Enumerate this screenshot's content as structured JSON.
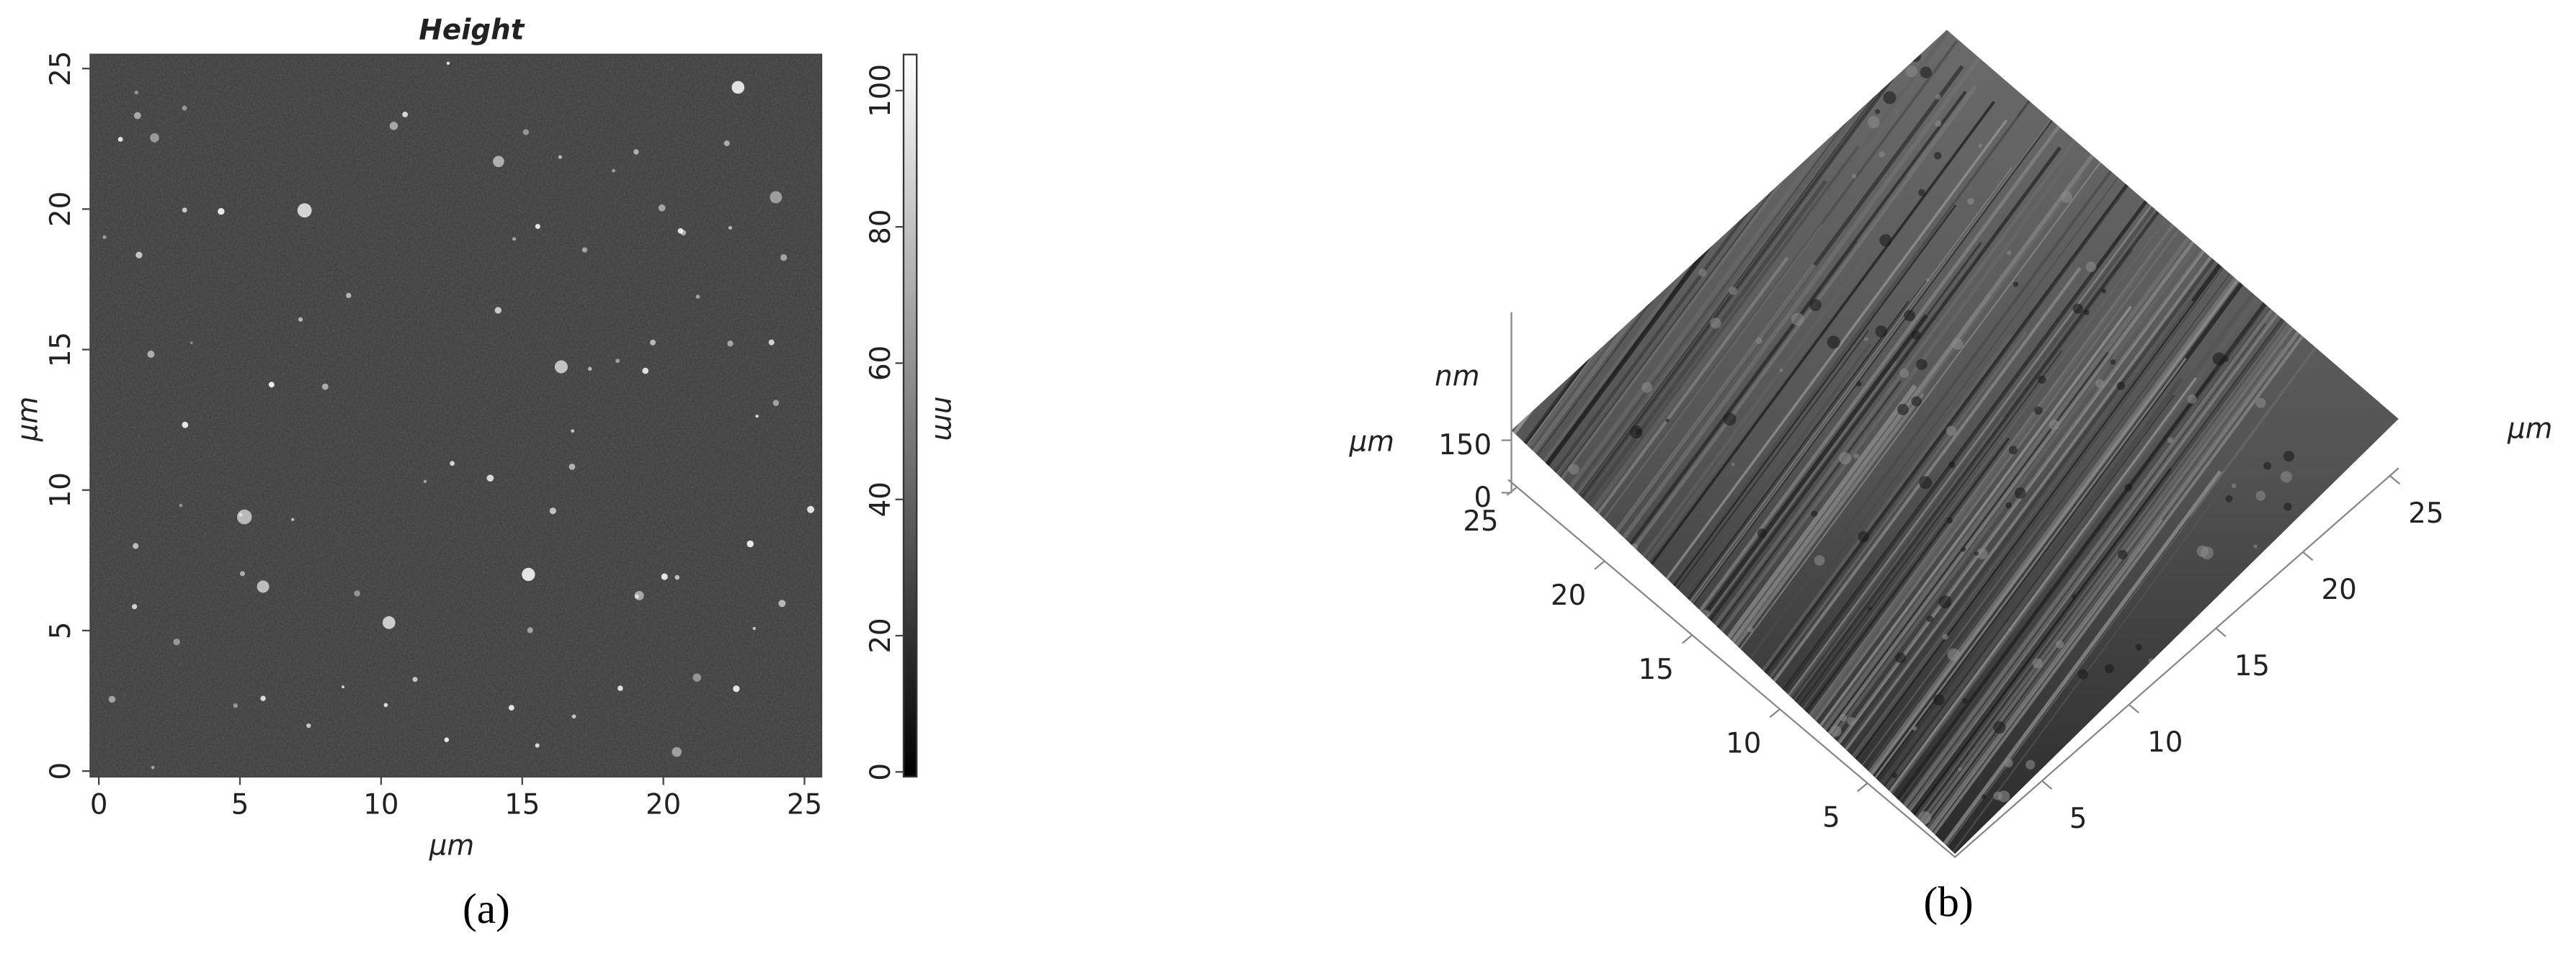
{
  "chart_data": [
    {
      "type": "heatmap",
      "title": "Height",
      "xlabel": "μm",
      "ylabel": "μm",
      "xlim": [
        -0.3,
        25.6
      ],
      "ylim": [
        -0.2,
        25.5
      ],
      "xticks": [
        0,
        5,
        10,
        15,
        20,
        25
      ],
      "yticks": [
        0,
        5,
        10,
        15,
        20,
        25
      ],
      "colorbar_label": "nm",
      "clim": [
        -0.7,
        105.3
      ],
      "cticks": [
        0,
        20,
        40,
        60,
        80,
        100
      ],
      "caption": "(a)"
    },
    {
      "type": "surface3d",
      "xlabel": "μm",
      "ylabel": "μm",
      "zlabel": "nm",
      "xlim": [
        0,
        25.5
      ],
      "ylim": [
        0,
        25.5
      ],
      "zlim": [
        0,
        516
      ],
      "xticks": [
        5,
        10,
        15,
        20,
        25
      ],
      "yticks": [
        5,
        10,
        15,
        20,
        25
      ],
      "zticks": [
        0,
        150
      ],
      "caption": "(b)"
    }
  ]
}
